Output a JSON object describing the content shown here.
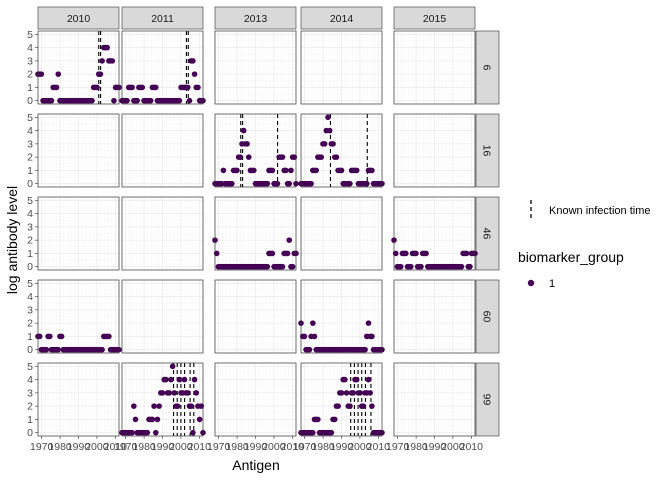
{
  "chart_data": {
    "type": "scatter",
    "title": "",
    "xlabel": "Antigen",
    "ylabel": "log antibody level",
    "xlim": [
      1968,
      2012
    ],
    "ylim": [
      -0.25,
      5.25
    ],
    "x_ticks": [
      1970,
      1980,
      1990,
      2000,
      2010
    ],
    "x_tick_labels": [
      "1970",
      "1980",
      "1990",
      "2000",
      "2010"
    ],
    "y_ticks": [
      0,
      1,
      2,
      3,
      4,
      5
    ],
    "y_tick_labels": [
      "0",
      "1",
      "2",
      "3",
      "4",
      "5"
    ],
    "grid": true,
    "facet_cols": [
      "2010",
      "2011",
      "2013",
      "2014",
      "2015"
    ],
    "facet_rows": [
      "6",
      "16",
      "46",
      "60",
      "99"
    ],
    "colors": {
      "point": "#440154",
      "strip_bg": "#d9d9d9",
      "grid_major": "#ebebeb",
      "grid_minor": "#f5f5f5",
      "panel_border": "#333333"
    },
    "legend": {
      "position": "right",
      "infection_label": "Known infection time",
      "group_title": "biomarker_group",
      "group_items": [
        "1"
      ]
    },
    "panels": [
      {
        "row": "6",
        "col": "2010",
        "values": [
          2,
          2,
          2,
          0,
          0,
          0,
          0,
          0,
          0,
          1,
          1,
          1,
          2,
          0,
          0,
          0,
          0,
          0,
          0,
          0,
          0,
          0,
          0,
          0,
          0,
          0,
          0,
          0,
          0,
          0,
          0,
          0,
          0,
          1,
          1,
          1,
          2,
          2,
          3,
          4,
          4,
          4,
          3,
          3,
          3,
          0,
          1,
          1,
          1
        ],
        "infections": [
          2001,
          2002
        ]
      },
      {
        "row": "6",
        "col": "2011",
        "values": [
          0,
          0,
          0,
          0,
          1,
          1,
          1,
          0,
          0,
          0,
          1,
          1,
          1,
          0,
          0,
          0,
          0,
          0,
          1,
          1,
          1,
          0,
          0,
          0,
          0,
          0,
          0,
          0,
          0,
          0,
          0,
          0,
          0,
          0,
          0,
          1,
          1,
          1,
          1,
          1,
          0,
          3,
          3,
          2,
          1,
          1,
          0,
          0,
          0
        ],
        "infections": [
          2003,
          2004
        ]
      },
      {
        "row": "6",
        "col": "2013",
        "values": [],
        "infections": []
      },
      {
        "row": "6",
        "col": "2014",
        "values": [],
        "infections": []
      },
      {
        "row": "6",
        "col": "2015",
        "values": [],
        "infections": []
      },
      {
        "row": "16",
        "col": "2010",
        "values": [],
        "infections": []
      },
      {
        "row": "16",
        "col": "2011",
        "values": [],
        "infections": []
      },
      {
        "row": "16",
        "col": "2013",
        "values": [
          0,
          0,
          0,
          0,
          0,
          1,
          0,
          0,
          0,
          0,
          0,
          1,
          1,
          1,
          2,
          2,
          3,
          4,
          3,
          3,
          2,
          1,
          1,
          1,
          0,
          0,
          0,
          0,
          0,
          0,
          0,
          0,
          1,
          1,
          1,
          0,
          0,
          0,
          2,
          2,
          2,
          1,
          1,
          0,
          0,
          1,
          2,
          2,
          0
        ],
        "infections": [
          1982,
          1983,
          2002
        ]
      },
      {
        "row": "16",
        "col": "2014",
        "values": [
          0,
          0,
          0,
          0,
          0,
          0,
          0,
          1,
          1,
          1,
          2,
          2,
          2,
          3,
          3,
          4,
          5,
          4,
          3,
          3,
          2,
          2,
          1,
          1,
          1,
          0,
          0,
          0,
          0,
          0,
          1,
          1,
          1,
          1,
          0,
          0,
          0,
          0,
          0,
          0,
          1,
          1,
          1,
          0,
          0,
          0,
          0,
          0,
          0
        ],
        "infections": [
          1984,
          2004
        ]
      },
      {
        "row": "16",
        "col": "2015",
        "values": [],
        "infections": []
      },
      {
        "row": "46",
        "col": "2010",
        "values": [],
        "infections": []
      },
      {
        "row": "46",
        "col": "2011",
        "values": [],
        "infections": []
      },
      {
        "row": "46",
        "col": "2013",
        "values": [
          2,
          1,
          0,
          0,
          0,
          0,
          0,
          0,
          0,
          0,
          0,
          0,
          0,
          0,
          0,
          0,
          0,
          0,
          0,
          0,
          0,
          0,
          0,
          0,
          0,
          0,
          0,
          0,
          0,
          0,
          0,
          0,
          1,
          1,
          1,
          0,
          0,
          0,
          0,
          0,
          0,
          1,
          1,
          1,
          2,
          0,
          0,
          1,
          1
        ],
        "infections": []
      },
      {
        "row": "46",
        "col": "2014",
        "values": [],
        "infections": []
      },
      {
        "row": "46",
        "col": "2015",
        "values": [
          2,
          1,
          0,
          0,
          0,
          1,
          1,
          1,
          0,
          0,
          0,
          1,
          1,
          1,
          0,
          0,
          0,
          1,
          1,
          1,
          0,
          0,
          0,
          0,
          0,
          0,
          0,
          0,
          0,
          0,
          0,
          0,
          0,
          0,
          0,
          0,
          0,
          0,
          0,
          0,
          0,
          1,
          1,
          1,
          0,
          0,
          1,
          1,
          1
        ],
        "infections": []
      },
      {
        "row": "60",
        "col": "2010",
        "values": [
          1,
          1,
          0,
          0,
          0,
          0,
          1,
          1,
          0,
          0,
          0,
          0,
          0,
          1,
          1,
          0,
          0,
          0,
          0,
          0,
          0,
          0,
          0,
          0,
          0,
          0,
          0,
          0,
          0,
          0,
          0,
          0,
          0,
          0,
          0,
          0,
          0,
          0,
          0,
          1,
          1,
          1,
          1,
          0,
          0,
          0,
          0,
          0,
          0
        ],
        "infections": []
      },
      {
        "row": "60",
        "col": "2011",
        "values": [],
        "infections": []
      },
      {
        "row": "60",
        "col": "2013",
        "values": [],
        "infections": []
      },
      {
        "row": "60",
        "col": "2014",
        "values": [
          2,
          1,
          1,
          0,
          0,
          0,
          1,
          2,
          1,
          0,
          0,
          0,
          0,
          0,
          0,
          0,
          0,
          0,
          0,
          0,
          0,
          0,
          0,
          0,
          0,
          0,
          0,
          0,
          0,
          0,
          0,
          0,
          0,
          0,
          0,
          0,
          0,
          0,
          0,
          1,
          2,
          1,
          1,
          0,
          0,
          0,
          0,
          0,
          0
        ],
        "infections": []
      },
      {
        "row": "60",
        "col": "2015",
        "values": [],
        "infections": []
      },
      {
        "row": "99",
        "col": "2010",
        "values": [],
        "infections": []
      },
      {
        "row": "99",
        "col": "2011",
        "values": [
          0,
          0,
          0,
          0,
          0,
          0,
          0,
          2,
          1,
          0,
          0,
          0,
          0,
          0,
          0,
          0,
          1,
          1,
          1,
          2,
          0,
          1,
          2,
          3,
          3,
          4,
          4,
          3,
          3,
          4,
          5,
          3,
          2,
          2,
          4,
          3,
          3,
          4,
          3,
          3,
          2,
          2,
          0,
          4,
          3,
          2,
          1,
          2,
          0
        ],
        "infections": [
          1996,
          1998,
          2000,
          2002,
          2005,
          2007
        ]
      },
      {
        "row": "99",
        "col": "2013",
        "values": [],
        "infections": []
      },
      {
        "row": "99",
        "col": "2014",
        "values": [
          0,
          0,
          0,
          0,
          0,
          0,
          0,
          0,
          1,
          1,
          1,
          0,
          0,
          0,
          0,
          0,
          0,
          0,
          0,
          1,
          1,
          2,
          2,
          3,
          3,
          4,
          4,
          3,
          2,
          2,
          3,
          3,
          4,
          4,
          3,
          3,
          2,
          2,
          3,
          3,
          4,
          3,
          2,
          0,
          0,
          0,
          0,
          0,
          0
        ],
        "infections": [
          1995,
          1997,
          1999,
          2001,
          2003,
          2006
        ]
      },
      {
        "row": "99",
        "col": "2015",
        "values": [],
        "infections": []
      }
    ]
  }
}
